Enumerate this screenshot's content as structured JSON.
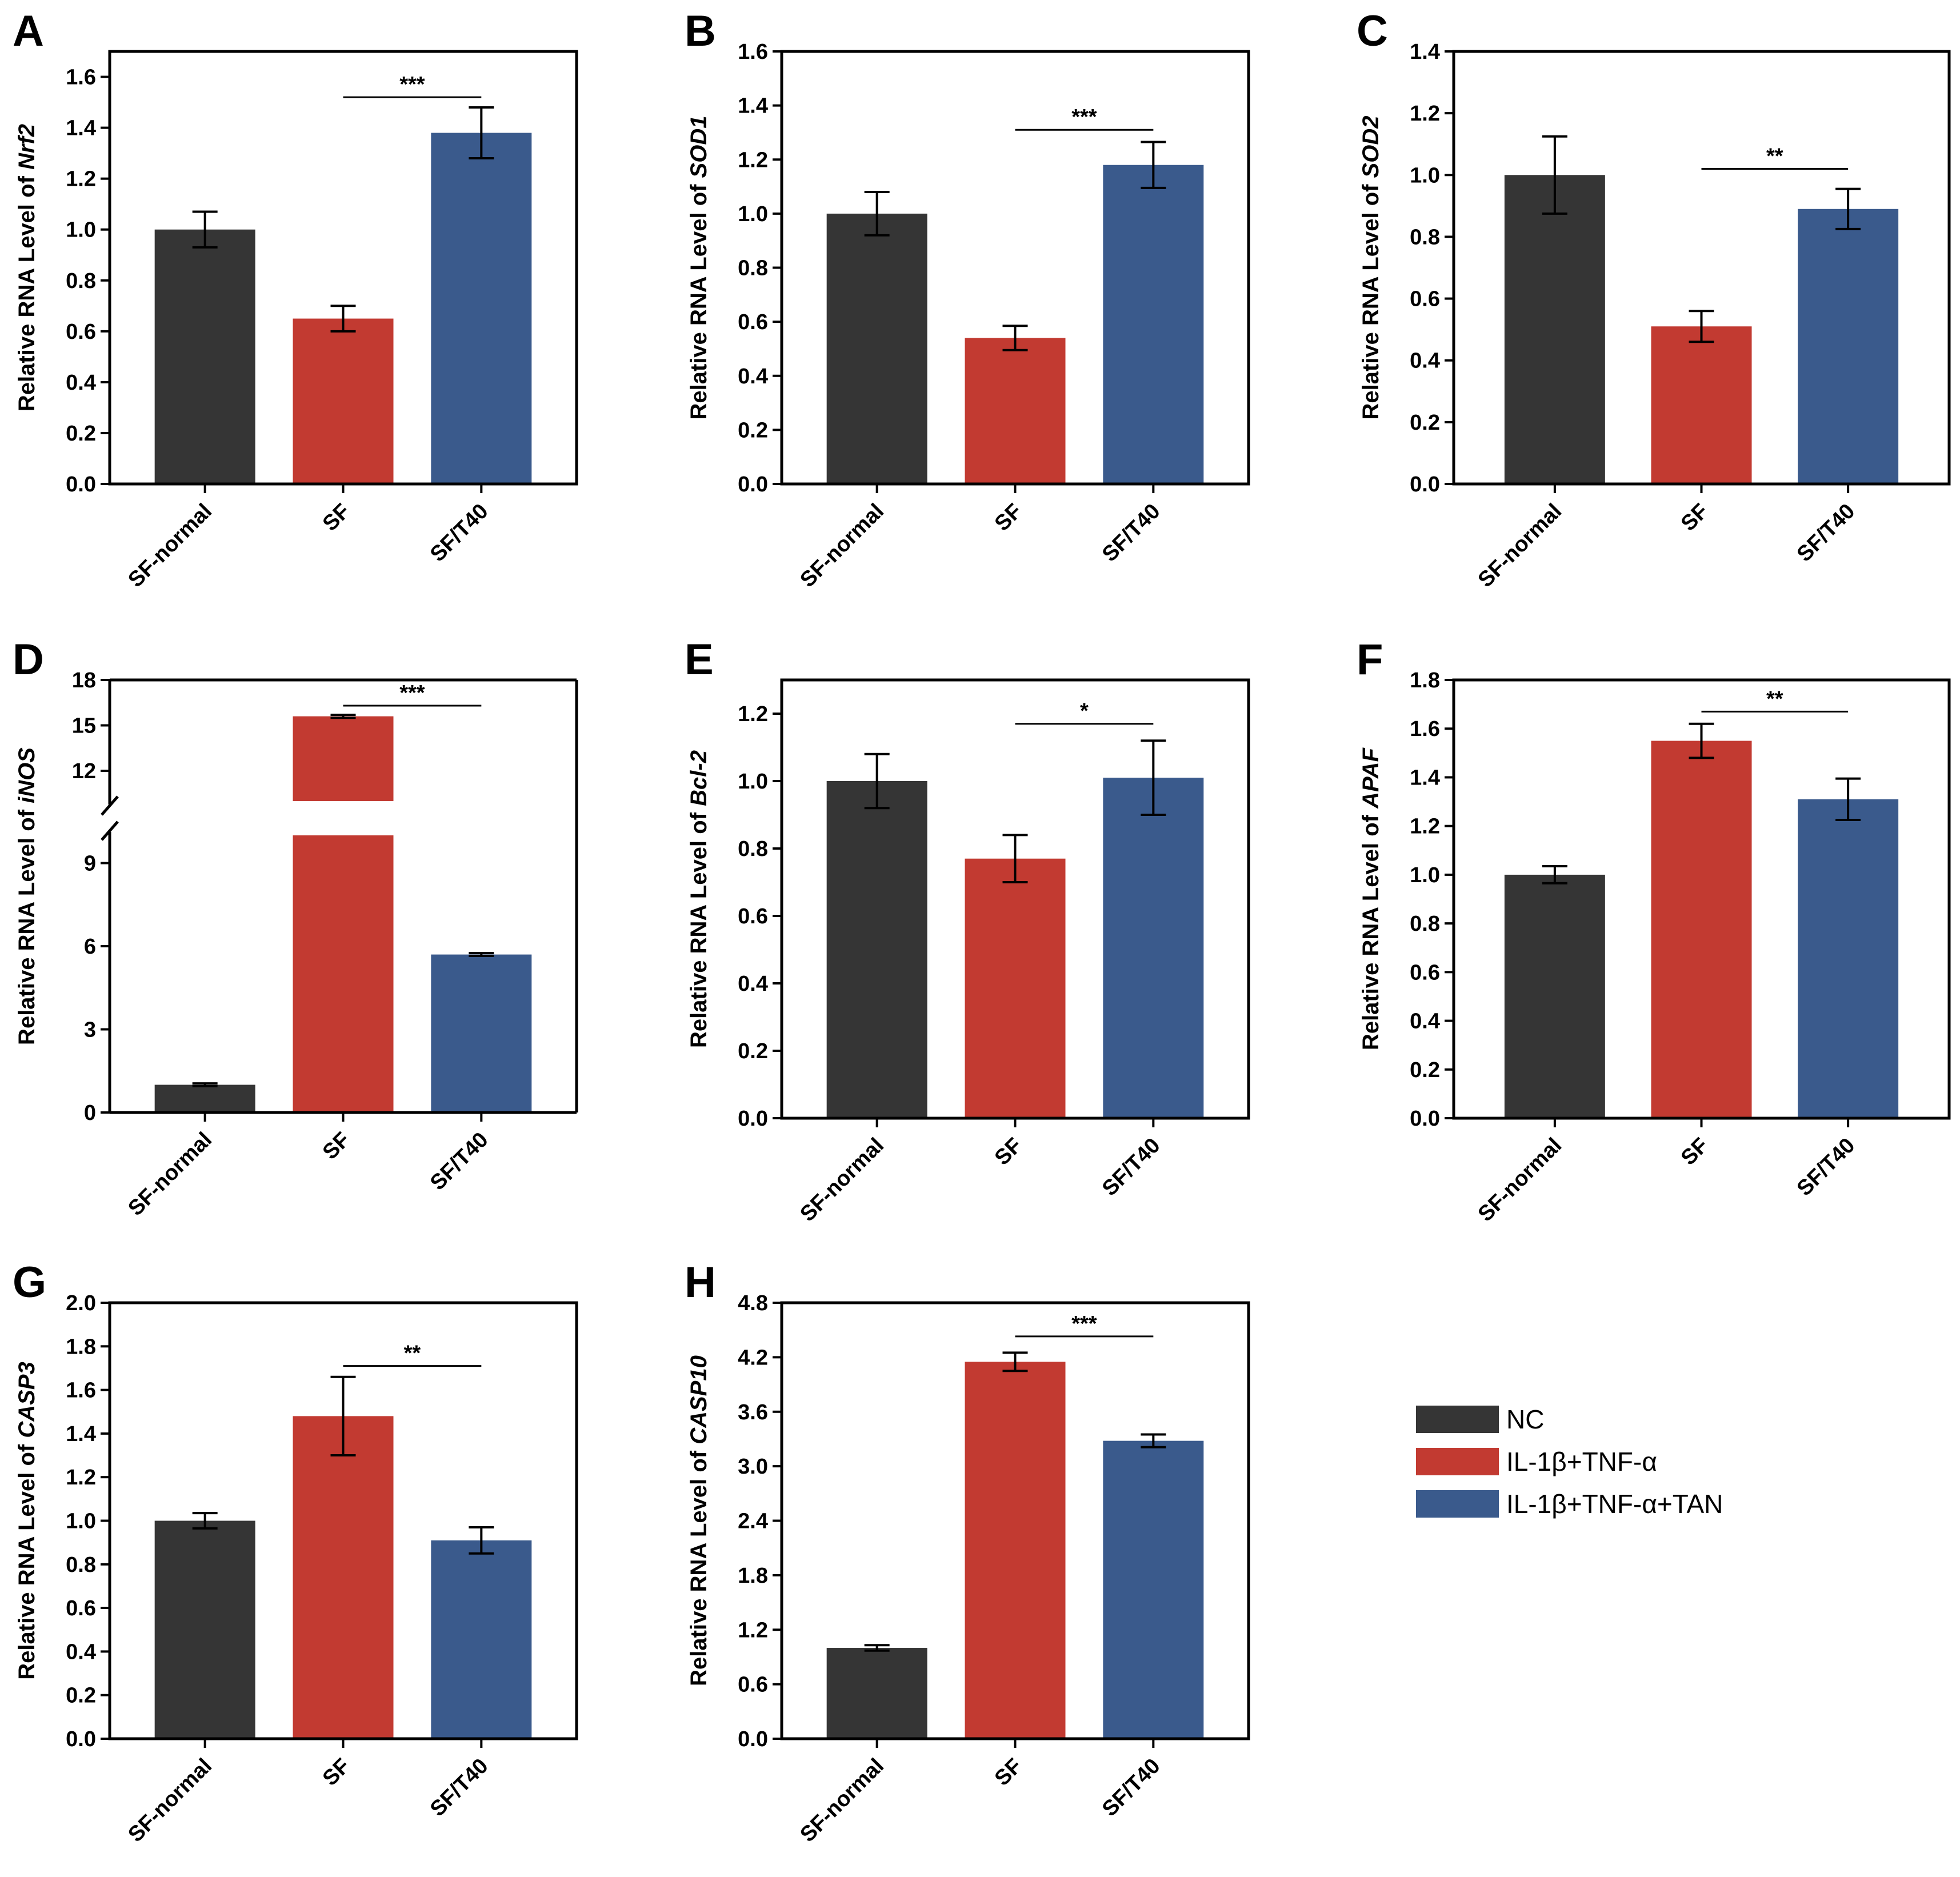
{
  "colors": {
    "NC": "#353535",
    "IL-1β+TNF-α": "#c23a31",
    "IL-1β+TNF-α+TAN": "#3a5a8c"
  },
  "legend": [
    {
      "label": "NC",
      "color_key": "NC"
    },
    {
      "label": "IL-1β+TNF-α",
      "color_key": "IL-1β+TNF-α"
    },
    {
      "label": "IL-1β+TNF-α+TAN",
      "color_key": "IL-1β+TNF-α+TAN"
    }
  ],
  "chart_data": [
    {
      "panel": "A",
      "type": "bar",
      "ylabel_prefix": "Relative RNA Level of ",
      "gene": "Nrf2",
      "categories": [
        "SF-normal",
        "SF",
        "SF/T40"
      ],
      "values": [
        1.0,
        0.65,
        1.38
      ],
      "errors": [
        0.07,
        0.05,
        0.1
      ],
      "ylim": [
        0,
        1.7
      ],
      "yticks": [
        "0.0",
        "0.2",
        "0.4",
        "0.6",
        "0.8",
        "1.0",
        "1.2",
        "1.4",
        "1.6"
      ],
      "significance": {
        "from": "SF",
        "to": "SF/T40",
        "label": "***",
        "y": 1.52
      }
    },
    {
      "panel": "B",
      "type": "bar",
      "ylabel_prefix": "Relative RNA Level of ",
      "gene": "SOD1",
      "categories": [
        "SF-normal",
        "SF",
        "SF/T40"
      ],
      "values": [
        1.0,
        0.54,
        1.18
      ],
      "errors": [
        0.08,
        0.045,
        0.085
      ],
      "ylim": [
        0,
        1.6
      ],
      "yticks": [
        "0.0",
        "0.2",
        "0.4",
        "0.6",
        "0.8",
        "1.0",
        "1.2",
        "1.4",
        "1.6"
      ],
      "significance": {
        "from": "SF",
        "to": "SF/T40",
        "label": "***",
        "y": 1.31
      }
    },
    {
      "panel": "C",
      "type": "bar",
      "ylabel_prefix": "Relative RNA Level of ",
      "gene": "SOD2",
      "categories": [
        "SF-normal",
        "SF",
        "SF/T40"
      ],
      "values": [
        1.0,
        0.51,
        0.89
      ],
      "errors": [
        0.125,
        0.05,
        0.065
      ],
      "ylim": [
        0,
        1.4
      ],
      "yticks": [
        "0.0",
        "0.2",
        "0.4",
        "0.6",
        "0.8",
        "1.0",
        "1.2",
        "1.4"
      ],
      "significance": {
        "from": "SF",
        "to": "SF/T40",
        "label": "**",
        "y": 1.02
      }
    },
    {
      "panel": "D",
      "type": "bar",
      "broken_axis": true,
      "ylabel_prefix": "Relative RNA Level of ",
      "gene": "iNOS",
      "categories": [
        "SF-normal",
        "SF",
        "SF/T40"
      ],
      "values": [
        1.0,
        15.6,
        5.7
      ],
      "errors": [
        0.05,
        0.1,
        0.05
      ],
      "lower_range": [
        0,
        10
      ],
      "upper_range": [
        10,
        18
      ],
      "lower_ticks": [
        "0",
        "3",
        "6",
        "9"
      ],
      "upper_ticks": [
        "12",
        "15",
        "18"
      ],
      "significance": {
        "from": "SF",
        "to": "SF/T40",
        "label": "***",
        "y": 16.3
      }
    },
    {
      "panel": "E",
      "type": "bar",
      "ylabel_prefix": "Relative RNA Level of ",
      "gene": "Bcl-2",
      "categories": [
        "SF-normal",
        "SF",
        "SF/T40"
      ],
      "values": [
        1.0,
        0.77,
        1.01
      ],
      "errors": [
        0.08,
        0.07,
        0.11
      ],
      "ylim": [
        0,
        1.3
      ],
      "yticks": [
        "0.0",
        "0.2",
        "0.4",
        "0.6",
        "0.8",
        "1.0",
        "1.2"
      ],
      "significance": {
        "from": "SF",
        "to": "SF/T40",
        "label": "*",
        "y": 1.17
      }
    },
    {
      "panel": "F",
      "type": "bar",
      "ylabel_prefix": "Relative RNA Level of ",
      "gene": "APAF",
      "categories": [
        "SF-normal",
        "SF",
        "SF/T40"
      ],
      "values": [
        1.0,
        1.55,
        1.31
      ],
      "errors": [
        0.035,
        0.07,
        0.085
      ],
      "ylim": [
        0,
        1.8
      ],
      "yticks": [
        "0.0",
        "0.2",
        "0.4",
        "0.6",
        "0.8",
        "1.0",
        "1.2",
        "1.4",
        "1.6",
        "1.8"
      ],
      "significance": {
        "from": "SF",
        "to": "SF/T40",
        "label": "**",
        "y": 1.67
      }
    },
    {
      "panel": "G",
      "type": "bar",
      "ylabel_prefix": "Relative RNA Level of ",
      "gene": "CASP3",
      "categories": [
        "SF-normal",
        "SF",
        "SF/T40"
      ],
      "values": [
        1.0,
        1.48,
        0.91
      ],
      "errors": [
        0.035,
        0.18,
        0.06
      ],
      "ylim": [
        0,
        2.0
      ],
      "yticks": [
        "0.0",
        "0.2",
        "0.4",
        "0.6",
        "0.8",
        "1.0",
        "1.2",
        "1.4",
        "1.6",
        "1.8",
        "2.0"
      ],
      "significance": {
        "from": "SF",
        "to": "SF/T40",
        "label": "**",
        "y": 1.71
      }
    },
    {
      "panel": "H",
      "type": "bar",
      "ylabel_prefix": "Relative RNA Level of ",
      "gene": "CASP10",
      "categories": [
        "SF-normal",
        "SF",
        "SF/T40"
      ],
      "values": [
        1.0,
        4.15,
        3.28
      ],
      "errors": [
        0.03,
        0.1,
        0.07
      ],
      "ylim": [
        0,
        4.8
      ],
      "yticks": [
        "0.0",
        "0.6",
        "1.2",
        "1.8",
        "2.4",
        "3.0",
        "3.6",
        "4.2",
        "4.8"
      ],
      "significance": {
        "from": "SF",
        "to": "SF/T40",
        "label": "***",
        "y": 4.43
      }
    }
  ]
}
